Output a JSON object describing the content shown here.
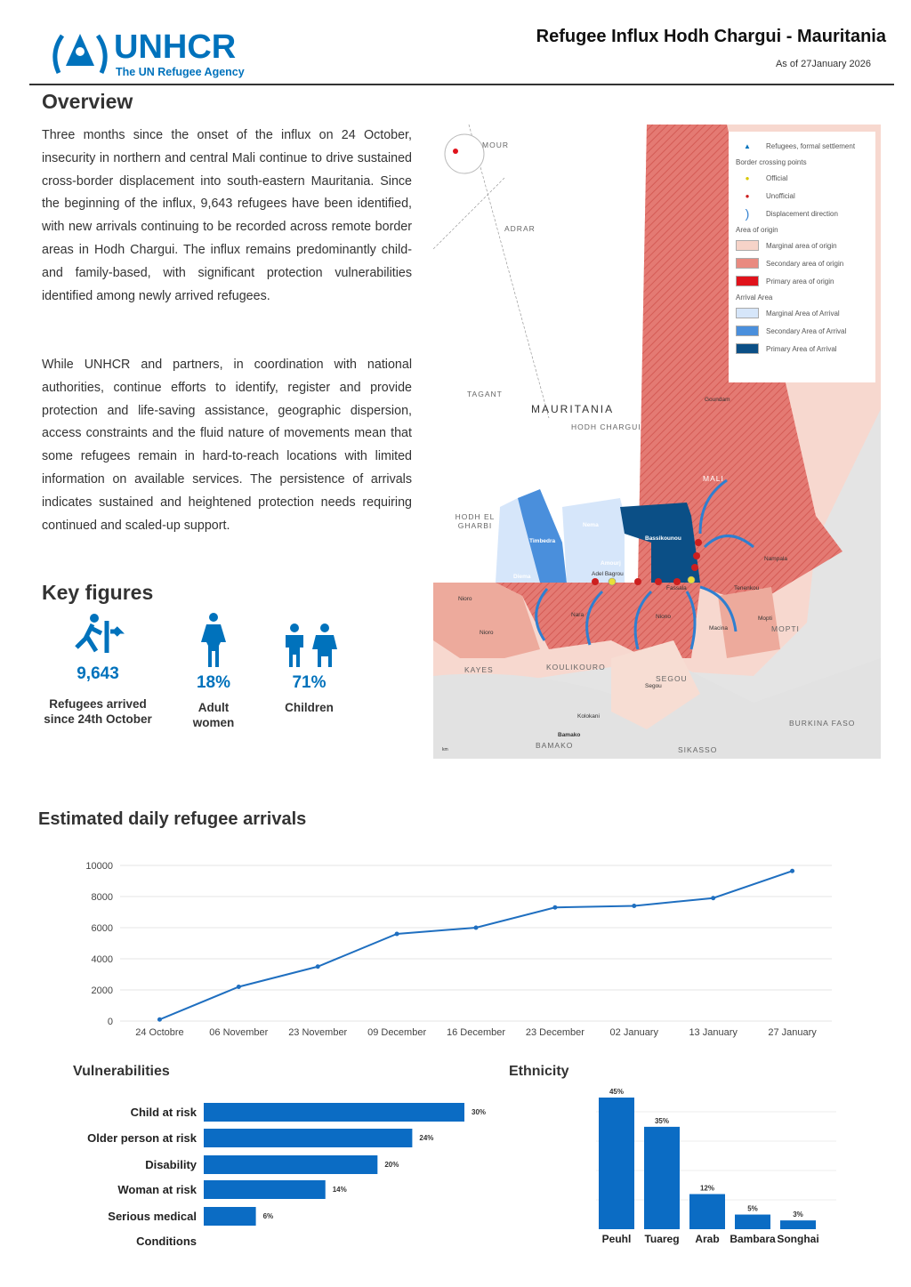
{
  "header": {
    "logo_word": "UNHCR",
    "logo_tagline": "The UN Refugee Agency",
    "title": "Refugee Influx Hodh Chargui - Mauritania",
    "as_of": "As of 27January 2026"
  },
  "overview": {
    "heading": "Overview",
    "p1": "Three months since the onset of the influx on 24 October, insecurity in northern and central Mali continue to drive sustained cross-border displacement into south-eastern Mauritania. Since the beginning of the influx, 9,643 refugees have been identified, with new arrivals continuing to be recorded across remote border areas in Hodh Chargui. The influx remains predominantly child- and family-based, with significant protection vulnerabilities identified among newly arrived refugees.",
    "p2": "While UNHCR and partners, in coordination with national authorities, continue efforts to identify, register and provide protection and life-saving assistance, geographic dispersion, access constraints and the fluid nature of movements mean that some refugees remain in hard-to-reach locations with limited information on available services. The persistence of arrivals indicates sustained and heightened protection needs requiring continued and scaled-up support."
  },
  "key_figures": {
    "heading": "Key figures",
    "items": [
      {
        "value": "9,643",
        "label": "Refugees arrived since 24th October",
        "icon": "running-person-icon"
      },
      {
        "value": "18%",
        "label": "Adult women",
        "icon": "woman-icon"
      },
      {
        "value": "71%",
        "label": "Children",
        "icon": "children-icon"
      }
    ]
  },
  "map": {
    "labels": {
      "mour": "MOUR",
      "adrar": "ADRAR",
      "tagant": "TAGANT",
      "mauritania": "MAURITANIA",
      "hodh_chargui": "HODH CHARGUI",
      "hodh_gharbi": "HODH EL GHARBI",
      "mali": "MALI",
      "gao": "Goundam",
      "kayes": "KAYES",
      "koulikoro": "KOULIKOURO",
      "segou": "SEGOU",
      "mopti": "MOPTI",
      "burkina": "BURKINA FASO",
      "sikasso": "SIKASSO",
      "bamako": "BAMAKO",
      "bamako_city": "Bamako",
      "timbedra": "Timbedra",
      "nema": "Nema",
      "bassikounou": "Bassikounou",
      "amourj": "Amourj",
      "adel_bagrou": "Adel Bagrou",
      "fassala": "Fassala",
      "nara": "Nara",
      "niono": "Niono",
      "nampala": "Nampala",
      "tenenkou": "Tenenkou",
      "macina": "Macina",
      "segou_town": "Segou",
      "kolokani": "Kolokani",
      "diema": "Diema",
      "nioro": "Nioro",
      "djenne": "Mopti",
      "scale": "km"
    },
    "legend": {
      "settlement": "Refugees, formal settlement",
      "crossing": "Border crossing points",
      "official": "Official",
      "unofficial": "Unofficial",
      "direction": "Displacement direction",
      "origin_hd": "Area of origin",
      "origin_marginal": "Marginal area of origin",
      "origin_secondary": "Secondary area of origin",
      "origin_primary": "Primary area of origin",
      "arrival_hd": "Arrival Area",
      "arrival_marginal": "Marginal Area of Arrival",
      "arrival_secondary": "Secondary Area of Arrival",
      "arrival_primary": "Primary Area of Arrival"
    },
    "colors": {
      "origin_marginal": "#f6d3c8",
      "origin_secondary": "#e98a80",
      "origin_primary": "#e0121b",
      "arrival_marginal": "#d6e6fa",
      "arrival_secondary": "#4a8fdc",
      "arrival_primary": "#0b4f86"
    }
  },
  "chart_data": [
    {
      "type": "line",
      "title": "Estimated daily refugee arrivals",
      "categories": [
        "24 Octobre",
        "06 November",
        "23 November",
        "09 December",
        "16 December",
        "23 December",
        "02 January",
        "13 January",
        "27 January"
      ],
      "values": [
        100,
        2200,
        3500,
        5600,
        6000,
        7300,
        7400,
        7900,
        9643
      ],
      "ylim": [
        0,
        10000
      ],
      "yticks": [
        "0",
        "2000",
        "4000",
        "6000",
        "8000",
        "10000"
      ],
      "grid": true,
      "color": "#1f6fc0"
    },
    {
      "type": "bar",
      "orientation": "horizontal",
      "title": "Vulnerabilities",
      "categories": [
        "Child at risk",
        "Older person at risk",
        "Disability",
        "Woman at risk",
        "Serious medical Conditions"
      ],
      "values": [
        30,
        24,
        20,
        14,
        6
      ],
      "labels": [
        "30%",
        "24%",
        "20%",
        "14%",
        "6%"
      ],
      "color": "#0b6cc4"
    },
    {
      "type": "bar",
      "title": "Ethnicity",
      "categories": [
        "Peuhl",
        "Tuareg",
        "Arab",
        "Bambara",
        "Songhai"
      ],
      "values": [
        45,
        35,
        12,
        5,
        3
      ],
      "labels": [
        "45%",
        "35%",
        "12%",
        "5%",
        "3%"
      ],
      "color": "#0b6cc4"
    }
  ]
}
